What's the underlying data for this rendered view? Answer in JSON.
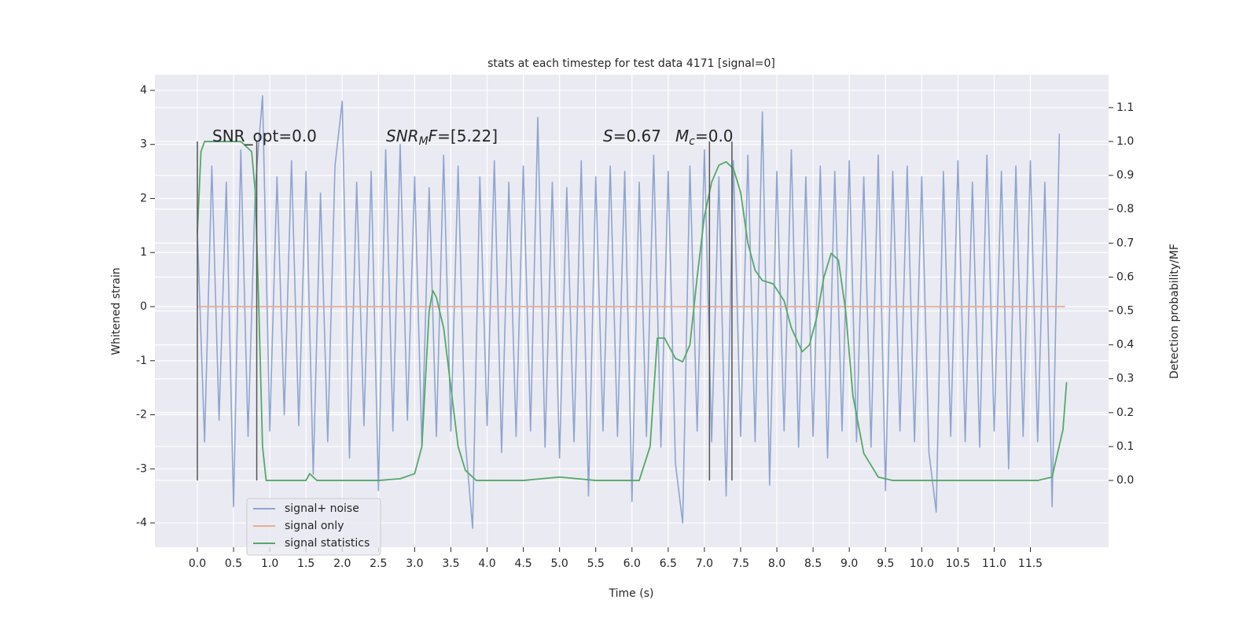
{
  "chart_data": {
    "type": "line",
    "title": "stats at each timestep for test data 4171 [signal=0]",
    "xlabel": "Time (s)",
    "ylabel": "Whitened strain",
    "y2label": "Detection probability/MF",
    "xlim": [
      -0.586,
      12.58
    ],
    "ylim": [
      -4.45,
      4.29
    ],
    "y2lim": [
      -0.197,
      1.197
    ],
    "xticks": [
      {
        "value": 0,
        "label": "0.0"
      },
      0.5,
      {
        "value": 1,
        "label": "1.0"
      },
      1.5,
      {
        "value": 2,
        "label": "2.0"
      },
      2.5,
      {
        "value": 3,
        "label": "3.0"
      },
      3.5,
      {
        "value": 4,
        "label": "4.0"
      },
      4.5,
      {
        "value": 5,
        "label": "5.0"
      },
      5.5,
      {
        "value": 6,
        "label": "6.0"
      },
      6.5,
      {
        "value": 7,
        "label": "7.0"
      },
      7.5,
      {
        "value": 8,
        "label": "8.0"
      },
      8.5,
      {
        "value": 9,
        "label": "9.0"
      },
      9.5,
      {
        "value": 10,
        "label": "10.0"
      },
      10.5,
      {
        "value": 11,
        "label": "11.0"
      },
      11.5
    ],
    "yticks": [
      -4,
      -3,
      -2,
      -1,
      0,
      1,
      2,
      3,
      4
    ],
    "y2ticks": [
      {
        "value": 0,
        "label": "0.0"
      },
      0.1,
      0.2,
      0.3,
      0.4,
      0.5,
      0.6,
      0.7,
      0.8,
      0.9,
      {
        "value": 1,
        "label": "1.0"
      },
      1.1
    ],
    "grid": true,
    "legend": "lower left",
    "series": [
      {
        "name": "signal+ noise",
        "color": "#8fa5cf",
        "x": [
          0.0,
          0.1,
          0.2,
          0.3,
          0.4,
          0.5,
          0.6,
          0.7,
          0.8,
          0.9,
          1.0,
          1.1,
          1.2,
          1.3,
          1.4,
          1.5,
          1.6,
          1.7,
          1.8,
          1.9,
          2.0,
          2.1,
          2.2,
          2.3,
          2.4,
          2.5,
          2.6,
          2.7,
          2.8,
          2.9,
          3.0,
          3.1,
          3.2,
          3.3,
          3.4,
          3.5,
          3.6,
          3.7,
          3.8,
          3.9,
          4.0,
          4.1,
          4.2,
          4.3,
          4.4,
          4.5,
          4.6,
          4.7,
          4.8,
          4.9,
          5.0,
          5.1,
          5.2,
          5.3,
          5.4,
          5.5,
          5.6,
          5.7,
          5.8,
          5.9,
          6.0,
          6.1,
          6.2,
          6.3,
          6.4,
          6.5,
          6.6,
          6.7,
          6.8,
          6.9,
          7.0,
          7.1,
          7.2,
          7.3,
          7.4,
          7.5,
          7.6,
          7.7,
          7.8,
          7.9,
          8.0,
          8.1,
          8.2,
          8.3,
          8.4,
          8.5,
          8.6,
          8.7,
          8.8,
          8.9,
          9.0,
          9.1,
          9.2,
          9.3,
          9.4,
          9.5,
          9.6,
          9.7,
          9.8,
          9.9,
          10.0,
          10.1,
          10.2,
          10.3,
          10.4,
          10.5,
          10.6,
          10.7,
          10.8,
          10.9,
          11.0,
          11.1,
          11.2,
          11.3,
          11.4,
          11.5,
          11.6,
          11.7,
          11.8,
          11.9
        ],
        "values": [
          1.4,
          -2.5,
          2.6,
          -2.1,
          2.3,
          -3.7,
          2.9,
          -2.4,
          2.2,
          3.9,
          -2.3,
          2.4,
          -2.0,
          2.7,
          -2.2,
          2.5,
          -3.1,
          2.1,
          -2.5,
          2.6,
          3.8,
          -2.8,
          2.3,
          -2.2,
          2.5,
          -3.4,
          2.9,
          -2.3,
          3.0,
          -2.1,
          2.4,
          -2.6,
          2.2,
          -2.4,
          2.8,
          -2.3,
          2.6,
          -2.5,
          -4.1,
          2.4,
          -2.2,
          2.7,
          -2.7,
          2.3,
          -2.4,
          2.6,
          -2.3,
          3.5,
          -2.6,
          2.3,
          -2.8,
          2.2,
          -2.5,
          2.7,
          -3.5,
          2.4,
          -2.3,
          2.6,
          -2.4,
          2.5,
          -3.6,
          2.3,
          -2.4,
          2.8,
          -2.6,
          2.5,
          -2.9,
          -4.0,
          2.6,
          -2.3,
          2.9,
          -2.5,
          2.4,
          -3.5,
          2.7,
          -2.4,
          2.8,
          -2.5,
          3.6,
          -3.3,
          2.5,
          -2.3,
          2.9,
          -2.6,
          2.4,
          -2.4,
          2.6,
          -2.8,
          2.5,
          -2.3,
          2.7,
          -2.5,
          2.4,
          -2.6,
          2.8,
          -3.4,
          2.5,
          -2.3,
          2.6,
          -2.5,
          2.4,
          -2.7,
          -3.8,
          2.5,
          -2.4,
          2.7,
          -2.5,
          2.3,
          -2.6,
          2.8,
          -2.3,
          2.5,
          -3.0,
          2.6,
          -2.4,
          2.7,
          -2.5,
          2.3,
          -3.7,
          3.2
        ]
      },
      {
        "name": "signal only",
        "color": "#e5ae98",
        "x": [
          0.0,
          11.98
        ],
        "values": [
          0,
          0
        ]
      },
      {
        "name": "signal statistics",
        "color": "#55a868",
        "axis": "y2",
        "x": [
          0.0,
          0.05,
          0.1,
          0.2,
          0.6,
          0.75,
          0.8,
          0.85,
          0.9,
          0.95,
          1.1,
          1.5,
          1.55,
          1.65,
          2.5,
          2.8,
          3.0,
          3.1,
          3.2,
          3.25,
          3.3,
          3.4,
          3.6,
          3.7,
          3.85,
          4.5,
          5.0,
          5.5,
          6.1,
          6.25,
          6.35,
          6.45,
          6.6,
          6.7,
          6.8,
          6.9,
          7.0,
          7.1,
          7.2,
          7.3,
          7.4,
          7.5,
          7.6,
          7.7,
          7.8,
          7.95,
          8.1,
          8.2,
          8.35,
          8.45,
          8.55,
          8.65,
          8.75,
          8.85,
          8.95,
          9.05,
          9.2,
          9.4,
          9.6,
          10.0,
          11.6,
          11.8,
          11.95,
          12.0
        ],
        "values": [
          0.73,
          0.97,
          1.0,
          1.0,
          1.0,
          0.97,
          0.85,
          0.5,
          0.1,
          0.0,
          0.0,
          0.0,
          0.02,
          0.0,
          0.0,
          0.005,
          0.02,
          0.1,
          0.5,
          0.56,
          0.54,
          0.45,
          0.1,
          0.03,
          0.0,
          0.0,
          0.01,
          0.0,
          0.0,
          0.1,
          0.42,
          0.42,
          0.36,
          0.35,
          0.4,
          0.6,
          0.78,
          0.88,
          0.93,
          0.94,
          0.92,
          0.85,
          0.7,
          0.62,
          0.59,
          0.58,
          0.53,
          0.45,
          0.38,
          0.4,
          0.48,
          0.6,
          0.67,
          0.65,
          0.5,
          0.25,
          0.08,
          0.01,
          0.0,
          0.0,
          0.0,
          0.01,
          0.15,
          0.29
        ]
      }
    ],
    "vlines": {
      "x": [
        0.0,
        0.82,
        7.07,
        7.38
      ],
      "y2range": [
        0,
        1
      ],
      "color": "#555555"
    },
    "annotations": [
      [
        {
          "text": "SNR_opt=0.0"
        }
      ],
      [
        {
          "text": "SNR",
          "italic": true
        },
        {
          "text": "M",
          "italic": true,
          "sub": true
        },
        {
          "text": "F",
          "italic": true
        },
        {
          "text": "=[5.22]"
        }
      ],
      [
        {
          "text": "S",
          "italic": true
        },
        {
          "text": "=0.67"
        }
      ],
      [
        {
          "text": "M",
          "italic": true
        },
        {
          "text": "c",
          "italic": true,
          "sub": true
        },
        {
          "text": "=0.0"
        }
      ]
    ]
  }
}
